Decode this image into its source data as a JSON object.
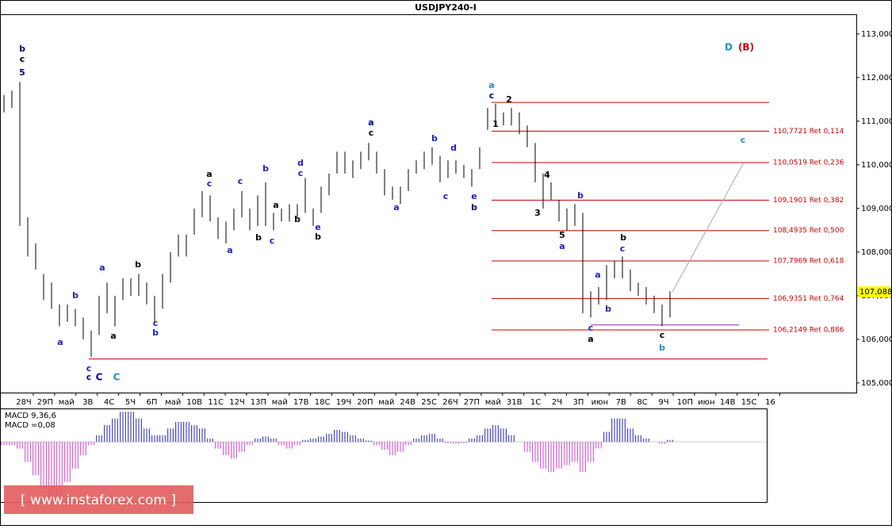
{
  "chart_data": {
    "type": "ohlc",
    "title": "USDJPY240-I",
    "ylim": [
      104.78,
      113.45
    ],
    "yticks": [
      {
        "value": 105,
        "label": "105,000"
      },
      {
        "value": 106,
        "label": "106,000"
      },
      {
        "value": 107,
        "label": "107,000"
      },
      {
        "value": 108,
        "label": "108,000"
      },
      {
        "value": 109,
        "label": "109,000"
      },
      {
        "value": 110,
        "label": "110,000"
      },
      {
        "value": 111,
        "label": "111,000"
      },
      {
        "value": 112,
        "label": "112,000"
      },
      {
        "value": 113,
        "label": "113,000"
      }
    ],
    "categories": [
      "28Ч",
      "29П",
      "май",
      "3В",
      "4С",
      "5Ч",
      "6П",
      "май",
      "10В",
      "11С",
      "12Ч",
      "13П",
      "май",
      "17В",
      "18С",
      "19Ч",
      "20П",
      "май",
      "24В",
      "25С",
      "26Ч",
      "27П",
      "май",
      "31В",
      "1С",
      "2Ч",
      "3П",
      "июн",
      "7В",
      "8С",
      "9Ч",
      "10П",
      "июн",
      "14В",
      "15С",
      "16"
    ],
    "color": "#000000",
    "high": [
      111.6,
      111.7,
      111.9,
      108.8,
      108.2,
      107.5,
      107.3,
      106.8,
      106.8,
      106.7,
      106.5,
      106.2,
      107.0,
      107.3,
      107.0,
      107.4,
      107.4,
      107.5,
      107.3,
      107.0,
      107.5,
      108.0,
      108.4,
      108.4,
      109.0,
      109.4,
      109.3,
      108.8,
      108.7,
      109.0,
      109.4,
      109.0,
      109.3,
      109.6,
      108.9,
      109.0,
      109.1,
      109.1,
      109.7,
      109.0,
      109.5,
      109.8,
      110.3,
      110.3,
      110.1,
      110.3,
      110.5,
      110.3,
      109.9,
      109.5,
      109.5,
      109.9,
      110.1,
      110.3,
      110.4,
      110.2,
      110.1,
      110.1,
      110.0,
      109.9,
      110.4,
      111.3,
      111.4,
      111.2,
      111.3,
      111.2,
      110.9,
      110.5,
      109.8,
      109.6,
      109.2,
      109.0,
      109.1,
      108.9,
      107.1,
      107.2,
      107.7,
      107.8,
      107.9,
      107.6,
      107.3,
      107.2,
      107.0,
      106.8,
      107.1
    ],
    "low": [
      111.2,
      111.3,
      108.6,
      107.9,
      107.6,
      106.9,
      106.7,
      106.3,
      106.4,
      106.3,
      106.0,
      105.6,
      106.1,
      106.6,
      106.3,
      106.9,
      107.0,
      107.0,
      106.8,
      106.4,
      106.7,
      107.3,
      107.9,
      107.9,
      108.4,
      108.8,
      108.7,
      108.3,
      108.2,
      108.5,
      108.8,
      108.5,
      108.6,
      108.6,
      108.5,
      108.7,
      108.7,
      108.8,
      108.9,
      108.6,
      108.9,
      109.3,
      109.8,
      109.8,
      109.7,
      109.9,
      110.1,
      109.8,
      109.3,
      109.2,
      109.1,
      109.4,
      109.8,
      109.9,
      110.0,
      109.6,
      109.7,
      109.8,
      109.7,
      109.5,
      109.9,
      110.8,
      111.0,
      110.9,
      110.9,
      110.7,
      110.4,
      109.6,
      109.0,
      109.2,
      108.7,
      108.5,
      108.6,
      106.6,
      106.5,
      106.8,
      106.9,
      107.4,
      107.4,
      107.1,
      107.0,
      106.8,
      106.6,
      106.3,
      106.5
    ],
    "current_price": {
      "value": 107.088,
      "label": "107,088"
    },
    "levels": [
      {
        "value": 111.43
      },
      {
        "value": 110.7721,
        "label": "110,7721 Ret 0,114"
      },
      {
        "value": 110.0519,
        "label": "110,0519 Ret 0,236"
      },
      {
        "value": 109.1901,
        "label": "109,1901 Ret 0,382"
      },
      {
        "value": 108.4935,
        "label": "108,4935 Ret 0,500"
      },
      {
        "value": 107.7969,
        "label": "107,7969 Ret 0,618"
      },
      {
        "value": 106.9351,
        "label": "106,9351 Ret 0,764"
      },
      {
        "value": 106.2149,
        "label": "106,2149 Ret 0,886"
      }
    ],
    "support": 105.55,
    "support2": 106.33,
    "annotations": [
      {
        "text": "b",
        "color": "#000080"
      },
      {
        "text": "c",
        "color": "#000000"
      },
      {
        "text": "5",
        "color": "#000080"
      },
      {
        "text": "a",
        "color": "#1e90c8"
      },
      {
        "text": "c",
        "color": "#000080"
      },
      {
        "text": "2",
        "color": "#000000"
      },
      {
        "text": "1",
        "color": "#000000"
      },
      {
        "text": "a",
        "color": "#000080"
      },
      {
        "text": "c",
        "color": "#000000"
      },
      {
        "text": "D",
        "color": "#1e90c8"
      },
      {
        "text": "(B)",
        "color": "#cc0000"
      },
      {
        "text": "c",
        "color": "#1e90c8"
      },
      {
        "text": "4",
        "color": "#000000"
      },
      {
        "text": "3",
        "color": "#000000"
      },
      {
        "text": "5",
        "color": "#000000"
      },
      {
        "text": "a",
        "color": "#2020c0"
      },
      {
        "text": "b",
        "color": "#2020c0"
      },
      {
        "text": "b",
        "color": "#000000"
      },
      {
        "text": "c",
        "color": "#2020c0"
      },
      {
        "text": "a",
        "color": "#2020c0"
      },
      {
        "text": "b",
        "color": "#2020c0"
      },
      {
        "text": "c",
        "color": "#2020c0"
      },
      {
        "text": "a",
        "color": "#000000"
      },
      {
        "text": "c",
        "color": "#000000"
      },
      {
        "text": "b",
        "color": "#1e90c8"
      },
      {
        "text": "a",
        "color": "#000000"
      },
      {
        "text": "c",
        "color": "#2020c0"
      },
      {
        "text": "c",
        "color": "#2020c0"
      },
      {
        "text": "a",
        "color": "#2020c0"
      },
      {
        "text": "b",
        "color": "#000000"
      },
      {
        "text": "b",
        "color": "#2020c0"
      },
      {
        "text": "c",
        "color": "#2020c0"
      },
      {
        "text": "a",
        "color": "#000000"
      },
      {
        "text": "b",
        "color": "#000000"
      },
      {
        "text": "d",
        "color": "#2020c0"
      },
      {
        "text": "c",
        "color": "#2020c0"
      },
      {
        "text": "e",
        "color": "#2020c0"
      },
      {
        "text": "b",
        "color": "#000000"
      },
      {
        "text": "b",
        "color": "#2020c0"
      },
      {
        "text": "d",
        "color": "#2020c0"
      },
      {
        "text": "c",
        "color": "#2020c0"
      },
      {
        "text": "e",
        "color": "#2020c0"
      },
      {
        "text": "b",
        "color": "#000080"
      },
      {
        "text": "a",
        "color": "#2020c0"
      },
      {
        "text": "b",
        "color": "#000000"
      },
      {
        "text": "a",
        "color": "#2020c0"
      },
      {
        "text": "a",
        "color": "#000000"
      },
      {
        "text": "b",
        "color": "#2020c0"
      },
      {
        "text": "a",
        "color": "#2020c0"
      },
      {
        "text": "c",
        "color": "#2020c0"
      },
      {
        "text": "b",
        "color": "#2020c0"
      },
      {
        "text": "c",
        "color": "#2020c0"
      },
      {
        "text": "c",
        "color": "#000080"
      },
      {
        "text": "C",
        "color": "#000080"
      },
      {
        "text": "C",
        "color": "#1e90c8"
      }
    ],
    "macd": {
      "title": "MACD 9,36,6",
      "value_text": "MACD =0,08",
      "ylim": [
        -0.9,
        0.5
      ],
      "values": [
        -0.05,
        -0.05,
        -0.1,
        -0.3,
        -0.5,
        -0.7,
        -0.85,
        -0.8,
        -0.6,
        -0.4,
        -0.2,
        -0.05,
        0.1,
        0.25,
        0.35,
        0.45,
        0.45,
        0.35,
        0.2,
        0.1,
        0.1,
        0.2,
        0.3,
        0.3,
        0.25,
        0.2,
        0.05,
        -0.1,
        -0.2,
        -0.25,
        -0.15,
        -0.05,
        0.05,
        0.08,
        0.05,
        -0.05,
        -0.1,
        -0.05,
        0.03,
        0.05,
        0.08,
        0.12,
        0.18,
        0.15,
        0.1,
        0.05,
        0.02,
        -0.05,
        -0.12,
        -0.2,
        -0.15,
        -0.05,
        0.05,
        0.1,
        0.12,
        0.05,
        -0.02,
        -0.03,
        -0.02,
        0.05,
        0.1,
        0.2,
        0.25,
        0.2,
        0.1,
        0.0,
        -0.15,
        -0.3,
        -0.4,
        -0.45,
        -0.4,
        -0.35,
        -0.3,
        -0.45,
        -0.3,
        -0.1,
        0.15,
        0.35,
        0.35,
        0.2,
        0.1,
        0.05,
        0.0,
        -0.03,
        0.03
      ]
    },
    "watermark": "[ www.instaforex.com ]"
  }
}
